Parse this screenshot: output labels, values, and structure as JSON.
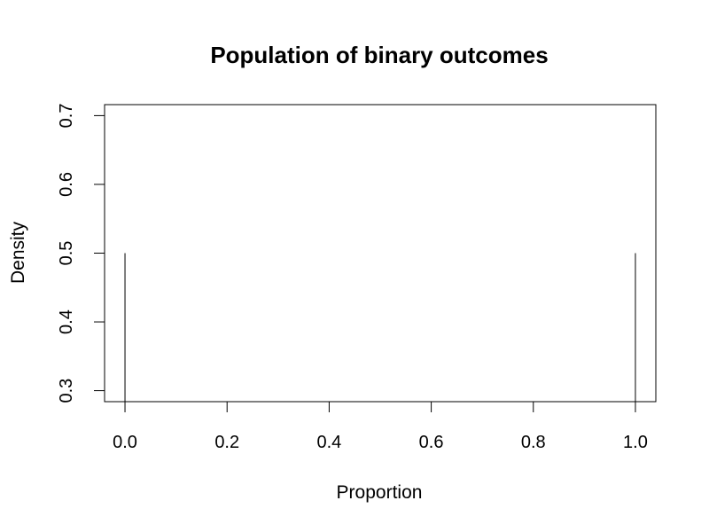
{
  "chart_data": {
    "type": "line",
    "title": "Population of binary outcomes",
    "xlabel": "Proportion",
    "ylabel": "Density",
    "xlim": [
      -0.04,
      1.04
    ],
    "ylim": [
      0.284,
      0.716
    ],
    "x_ticks": [
      "0.0",
      "0.2",
      "0.4",
      "0.6",
      "0.8",
      "1.0"
    ],
    "y_ticks": [
      "0.3",
      "0.4",
      "0.5",
      "0.6",
      "0.7"
    ],
    "grid": false,
    "series": [
      {
        "x": [
          0,
          1
        ],
        "y": [
          0.5,
          0.5
        ],
        "style": "vertical-spikes"
      }
    ],
    "line_color": "#000000"
  }
}
